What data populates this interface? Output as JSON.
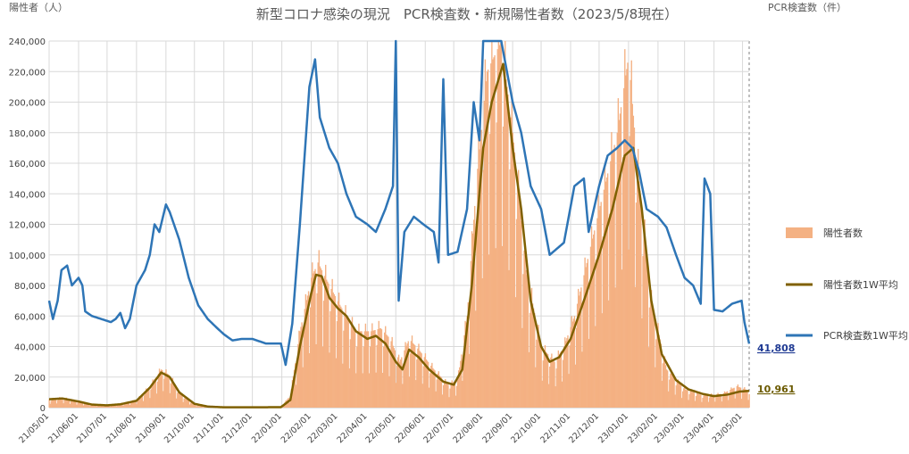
{
  "chart_data": {
    "type": "bar+line",
    "title": "新型コロナ感染の現況　PCR検査数・新規陽性者数（2023/5/8現在）",
    "ylabel_left": "陽性者（人）",
    "ylabel_right": "PCR検査数（件）",
    "ylim": [
      0,
      240000
    ],
    "yticks": [
      "0",
      "20,000",
      "40,000",
      "60,000",
      "80,000",
      "100,000",
      "120,000",
      "140,000",
      "160,000",
      "180,000",
      "200,000",
      "220,000",
      "240,000"
    ],
    "x_start": "2021-05-01",
    "x_end": "2023-05-08",
    "xticks": [
      "21/05/01",
      "21/06/01",
      "21/07/01",
      "21/08/01",
      "21/09/01",
      "21/10/01",
      "21/11/01",
      "21/12/01",
      "22/01/01",
      "22/02/01",
      "22/03/01",
      "22/04/01",
      "22/05/01",
      "22/06/01",
      "22/07/01",
      "22/08/01",
      "22/09/01",
      "22/10/01",
      "22/11/01",
      "22/12/01",
      "23/01/01",
      "23/02/01",
      "23/03/01",
      "23/04/01",
      "23/05/01"
    ],
    "grid": true,
    "legend_position": "right",
    "colors": {
      "bars": "#f4b183",
      "avg_positive": "#7f6000",
      "avg_pcr": "#2e75b6"
    },
    "series": [
      {
        "name": "陽性者数",
        "kind": "bar",
        "anchors": [
          [
            "2021-05-01",
            5500
          ],
          [
            "2021-05-15",
            6500
          ],
          [
            "2021-06-01",
            4000
          ],
          [
            "2021-06-15",
            2000
          ],
          [
            "2021-07-01",
            1500
          ],
          [
            "2021-07-15",
            2500
          ],
          [
            "2021-08-01",
            5000
          ],
          [
            "2021-08-15",
            14000
          ],
          [
            "2021-08-27",
            25000
          ],
          [
            "2021-09-05",
            21000
          ],
          [
            "2021-09-15",
            10000
          ],
          [
            "2021-10-01",
            2000
          ],
          [
            "2021-10-15",
            500
          ],
          [
            "2021-11-01",
            200
          ],
          [
            "2021-12-01",
            200
          ],
          [
            "2021-12-31",
            300
          ],
          [
            "2022-01-10",
            8000
          ],
          [
            "2022-01-20",
            50000
          ],
          [
            "2022-02-01",
            85000
          ],
          [
            "2022-02-08",
            95000
          ],
          [
            "2022-02-20",
            80000
          ],
          [
            "2022-03-05",
            65000
          ],
          [
            "2022-03-20",
            50000
          ],
          [
            "2022-04-05",
            50000
          ],
          [
            "2022-04-15",
            52000
          ],
          [
            "2022-04-25",
            45000
          ],
          [
            "2022-05-05",
            30000
          ],
          [
            "2022-05-15",
            45000
          ],
          [
            "2022-05-25",
            38000
          ],
          [
            "2022-06-10",
            25000
          ],
          [
            "2022-06-25",
            15000
          ],
          [
            "2022-07-05",
            18000
          ],
          [
            "2022-07-15",
            60000
          ],
          [
            "2022-07-25",
            150000
          ],
          [
            "2022-08-05",
            220000
          ],
          [
            "2022-08-20",
            240000
          ],
          [
            "2022-09-01",
            180000
          ],
          [
            "2022-09-15",
            90000
          ],
          [
            "2022-10-01",
            40000
          ],
          [
            "2022-10-15",
            30000
          ],
          [
            "2022-10-25",
            40000
          ],
          [
            "2022-11-05",
            60000
          ],
          [
            "2022-11-20",
            100000
          ],
          [
            "2022-12-05",
            140000
          ],
          [
            "2022-12-20",
            180000
          ],
          [
            "2023-01-01",
            230000
          ],
          [
            "2023-01-10",
            160000
          ],
          [
            "2023-01-25",
            70000
          ],
          [
            "2023-02-10",
            25000
          ],
          [
            "2023-03-01",
            12000
          ],
          [
            "2023-03-20",
            8000
          ],
          [
            "2023-04-10",
            9000
          ],
          [
            "2023-04-25",
            14000
          ],
          [
            "2023-05-08",
            11000
          ]
        ]
      },
      {
        "name": "陽性者数1W平均",
        "kind": "line",
        "anchors": [
          [
            "2021-05-01",
            5500
          ],
          [
            "2021-05-15",
            6000
          ],
          [
            "2021-06-01",
            4000
          ],
          [
            "2021-06-15",
            2000
          ],
          [
            "2021-07-01",
            1500
          ],
          [
            "2021-07-15",
            2200
          ],
          [
            "2021-08-01",
            4500
          ],
          [
            "2021-08-15",
            13000
          ],
          [
            "2021-08-27",
            23000
          ],
          [
            "2021-09-05",
            20000
          ],
          [
            "2021-09-15",
            10000
          ],
          [
            "2021-10-01",
            2500
          ],
          [
            "2021-10-15",
            700
          ],
          [
            "2021-11-01",
            200
          ],
          [
            "2021-12-01",
            200
          ],
          [
            "2021-12-31",
            300
          ],
          [
            "2022-01-10",
            5000
          ],
          [
            "2022-01-20",
            40000
          ],
          [
            "2022-02-01",
            75000
          ],
          [
            "2022-02-06",
            87000
          ],
          [
            "2022-02-12",
            86000
          ],
          [
            "2022-02-20",
            72000
          ],
          [
            "2022-03-01",
            65000
          ],
          [
            "2022-03-10",
            60000
          ],
          [
            "2022-03-20",
            50000
          ],
          [
            "2022-04-01",
            45000
          ],
          [
            "2022-04-10",
            47000
          ],
          [
            "2022-04-20",
            42000
          ],
          [
            "2022-05-01",
            30000
          ],
          [
            "2022-05-08",
            25000
          ],
          [
            "2022-05-15",
            38000
          ],
          [
            "2022-05-25",
            33000
          ],
          [
            "2022-06-05",
            25000
          ],
          [
            "2022-06-20",
            17000
          ],
          [
            "2022-07-01",
            15000
          ],
          [
            "2022-07-10",
            25000
          ],
          [
            "2022-07-20",
            80000
          ],
          [
            "2022-08-01",
            170000
          ],
          [
            "2022-08-10",
            200000
          ],
          [
            "2022-08-22",
            225000
          ],
          [
            "2022-09-01",
            170000
          ],
          [
            "2022-09-10",
            130000
          ],
          [
            "2022-09-20",
            70000
          ],
          [
            "2022-10-01",
            40000
          ],
          [
            "2022-10-10",
            30000
          ],
          [
            "2022-10-20",
            33000
          ],
          [
            "2022-11-01",
            45000
          ],
          [
            "2022-11-15",
            70000
          ],
          [
            "2022-12-01",
            100000
          ],
          [
            "2022-12-15",
            130000
          ],
          [
            "2022-12-28",
            165000
          ],
          [
            "2023-01-06",
            170000
          ],
          [
            "2023-01-15",
            130000
          ],
          [
            "2023-01-25",
            70000
          ],
          [
            "2023-02-05",
            35000
          ],
          [
            "2023-02-20",
            18000
          ],
          [
            "2023-03-05",
            12000
          ],
          [
            "2023-03-20",
            9000
          ],
          [
            "2023-04-01",
            7500
          ],
          [
            "2023-04-15",
            8500
          ],
          [
            "2023-04-28",
            10500
          ],
          [
            "2023-05-08",
            10961
          ]
        ]
      },
      {
        "name": "PCR検査数1W平均",
        "kind": "line",
        "anchors": [
          [
            "2021-05-01",
            70000
          ],
          [
            "2021-05-05",
            58000
          ],
          [
            "2021-05-10",
            70000
          ],
          [
            "2021-05-14",
            90000
          ],
          [
            "2021-05-20",
            93000
          ],
          [
            "2021-05-25",
            80000
          ],
          [
            "2021-06-01",
            85000
          ],
          [
            "2021-06-05",
            80000
          ],
          [
            "2021-06-08",
            63000
          ],
          [
            "2021-06-15",
            60000
          ],
          [
            "2021-06-25",
            58000
          ],
          [
            "2021-07-05",
            56000
          ],
          [
            "2021-07-10",
            58000
          ],
          [
            "2021-07-15",
            62000
          ],
          [
            "2021-07-20",
            52000
          ],
          [
            "2021-07-25",
            58000
          ],
          [
            "2021-08-01",
            80000
          ],
          [
            "2021-08-10",
            90000
          ],
          [
            "2021-08-15",
            100000
          ],
          [
            "2021-08-20",
            120000
          ],
          [
            "2021-08-25",
            115000
          ],
          [
            "2021-09-01",
            133000
          ],
          [
            "2021-09-05",
            128000
          ],
          [
            "2021-09-15",
            110000
          ],
          [
            "2021-09-25",
            85000
          ],
          [
            "2021-10-05",
            67000
          ],
          [
            "2021-10-15",
            58000
          ],
          [
            "2021-10-25",
            52000
          ],
          [
            "2021-11-01",
            48000
          ],
          [
            "2021-11-10",
            44000
          ],
          [
            "2021-11-20",
            45000
          ],
          [
            "2021-12-01",
            45000
          ],
          [
            "2021-12-15",
            42000
          ],
          [
            "2021-12-31",
            42000
          ],
          [
            "2022-01-05",
            28000
          ],
          [
            "2022-01-12",
            55000
          ],
          [
            "2022-01-20",
            120000
          ],
          [
            "2022-01-30",
            210000
          ],
          [
            "2022-02-05",
            228000
          ],
          [
            "2022-02-10",
            190000
          ],
          [
            "2022-02-20",
            170000
          ],
          [
            "2022-03-01",
            160000
          ],
          [
            "2022-03-10",
            140000
          ],
          [
            "2022-03-20",
            125000
          ],
          [
            "2022-04-01",
            120000
          ],
          [
            "2022-04-10",
            115000
          ],
          [
            "2022-04-20",
            130000
          ],
          [
            "2022-04-28",
            145000
          ],
          [
            "2022-05-01",
            240000
          ],
          [
            "2022-05-04",
            70000
          ],
          [
            "2022-05-10",
            115000
          ],
          [
            "2022-05-20",
            125000
          ],
          [
            "2022-05-30",
            120000
          ],
          [
            "2022-06-10",
            115000
          ],
          [
            "2022-06-15",
            95000
          ],
          [
            "2022-06-20",
            215000
          ],
          [
            "2022-06-25",
            100000
          ],
          [
            "2022-07-05",
            102000
          ],
          [
            "2022-07-15",
            130000
          ],
          [
            "2022-07-22",
            200000
          ],
          [
            "2022-07-28",
            175000
          ],
          [
            "2022-08-01",
            240000
          ],
          [
            "2022-08-20",
            240000
          ],
          [
            "2022-09-01",
            200000
          ],
          [
            "2022-09-10",
            180000
          ],
          [
            "2022-09-20",
            145000
          ],
          [
            "2022-10-01",
            130000
          ],
          [
            "2022-10-10",
            100000
          ],
          [
            "2022-10-25",
            108000
          ],
          [
            "2022-11-05",
            145000
          ],
          [
            "2022-11-15",
            150000
          ],
          [
            "2022-11-20",
            115000
          ],
          [
            "2022-12-01",
            145000
          ],
          [
            "2022-12-10",
            165000
          ],
          [
            "2022-12-20",
            170000
          ],
          [
            "2022-12-28",
            175000
          ],
          [
            "2023-01-05",
            170000
          ],
          [
            "2023-01-12",
            155000
          ],
          [
            "2023-01-20",
            130000
          ],
          [
            "2023-02-01",
            125000
          ],
          [
            "2023-02-10",
            118000
          ],
          [
            "2023-02-20",
            100000
          ],
          [
            "2023-03-01",
            85000
          ],
          [
            "2023-03-10",
            80000
          ],
          [
            "2023-03-18",
            68000
          ],
          [
            "2023-03-22",
            150000
          ],
          [
            "2023-03-28",
            140000
          ],
          [
            "2023-04-01",
            64000
          ],
          [
            "2023-04-10",
            63000
          ],
          [
            "2023-04-20",
            68000
          ],
          [
            "2023-04-30",
            70000
          ],
          [
            "2023-05-03",
            56000
          ],
          [
            "2023-05-08",
            41808
          ]
        ]
      }
    ],
    "end_labels": {
      "avg_pcr": "41,808",
      "avg_positive": "10,961"
    }
  }
}
